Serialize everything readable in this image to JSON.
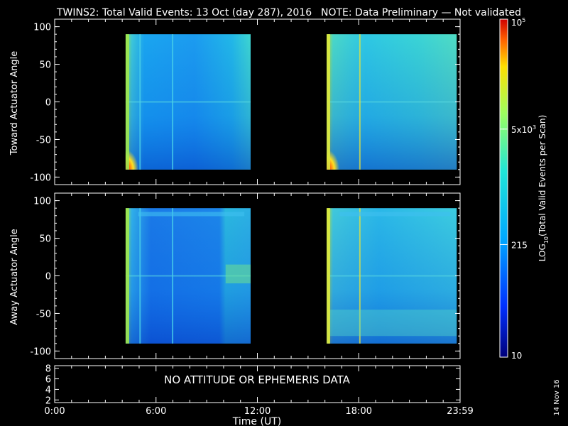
{
  "header": {
    "title": "TWINS2: Total Valid Events: 13 Oct (day 287), 2016",
    "note": "NOTE: Data Preliminary — Not validated",
    "note_color": "#ff2020"
  },
  "footer": {
    "date_stamp": "14 Nov 16"
  },
  "chart_data": [
    {
      "type": "heatmap",
      "title": "",
      "xlabel": "",
      "ylabel": "Toward Actuator Angle",
      "ylim": [
        -110,
        110
      ],
      "yticks": [
        "100",
        "50",
        "0",
        "-50",
        "-100"
      ],
      "x_range_hours": [
        0,
        24
      ],
      "data_intervals_hours": [
        [
          4.2,
          11.6
        ],
        [
          16.1,
          23.8
        ]
      ],
      "angle_range": [
        -90,
        90
      ],
      "typical_level": "cyan (~215–1000 events per scan)",
      "maximum_region": "red near -85° at the start of each interval"
    },
    {
      "type": "heatmap",
      "title": "",
      "xlabel": "",
      "ylabel": "Away Actuator Angle",
      "ylim": [
        -110,
        110
      ],
      "yticks": [
        "100",
        "50",
        "0",
        "-50",
        "-100"
      ],
      "x_range_hours": [
        0,
        24
      ],
      "data_intervals_hours": [
        [
          4.2,
          11.6
        ],
        [
          16.1,
          23.8
        ]
      ],
      "angle_range": [
        -90,
        90
      ],
      "typical_level": "blue–cyan (~100–800 events per scan)"
    },
    {
      "type": "line",
      "title": "",
      "xlabel": "Time (UT)",
      "ylabel": "",
      "ylim": [
        1.5,
        8.5
      ],
      "yticks": [
        "8",
        "6",
        "4",
        "2"
      ],
      "xticks": [
        "0:00",
        "6:00",
        "12:00",
        "18:00",
        "23:59"
      ],
      "annotation": "NO ATTITUDE OR EPHEMERIS DATA"
    }
  ],
  "colorbar": {
    "label": "LOG10(Total Valid Events per Scan)",
    "label_main": "LOG",
    "label_sub": "10",
    "label_rest": "(Total Valid Events per Scan)",
    "scale": "log",
    "range": [
      10,
      100000
    ],
    "ticks": [
      {
        "value": 100000,
        "base": "10",
        "exp": "5"
      },
      {
        "value": 5000,
        "base": "5x10",
        "exp": "3"
      },
      {
        "value": 215,
        "base": "215",
        "exp": ""
      },
      {
        "value": 10,
        "base": "10",
        "exp": ""
      }
    ],
    "colors": [
      "#00007a",
      "#0030ff",
      "#00a8ff",
      "#20e6d8",
      "#9cff60",
      "#ffe000",
      "#ff6000",
      "#d00000"
    ]
  }
}
